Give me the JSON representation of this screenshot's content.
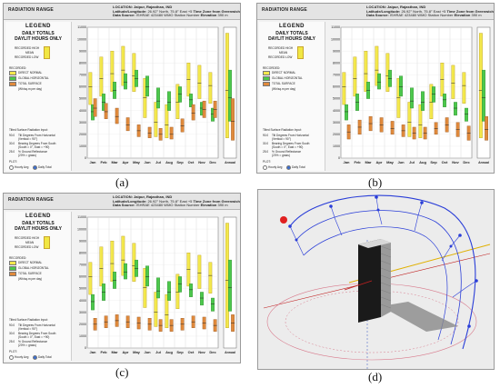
{
  "radiation_panel": {
    "app_title": "RADIATION RANGE",
    "location_label": "LOCATION:",
    "location_value": "Jaipur, Rajasthan, IND",
    "latlong_label": "Latitude/Longitude:",
    "latlong_value": "26.92° North, 75.8° East",
    "timezone_label": "Time Zone from Greenwich",
    "timezone_value": "+5",
    "source_label": "Data Source:",
    "source_value": "ISHRAE",
    "station_value": "423480 WMO Station Number",
    "elevation_label": "Elevation",
    "elevation_value": "390 m",
    "legend_title": "LEGEND",
    "legend_sub1": "DAILY TOTALS",
    "legend_sub2": "DAYLIT HOURS ONLY",
    "recorded_high": "RECORDED HIGH",
    "mean": "MEAN",
    "recorded_low": "RECORDED LOW",
    "recorded_header": "RECORDED:",
    "direct_normal": "DIRECT NORMAL",
    "global_horizontal": "GLOBAL HORIZONTAL",
    "total_surface": "TOTAL SURFACE",
    "units_note": "(Wh/sq.m per day)",
    "tilted_header": "Tilted Surface Radiation Input:",
    "tilt_value": "90.0",
    "tilt_text": "Tilt Degrees From Horizontal",
    "tilt_hint": "(Vertical = 90°)",
    "bearing_value": "30.0",
    "bearing_text": "Bearing Degrees From South",
    "bearing_hint": "(South = 0°, East = +90)",
    "reflectance_value": "25.0",
    "reflectance_text": "% Ground Reflectance",
    "reflectance_hint": "(20% = grass)",
    "plot_label": "PLOT:",
    "hourly_avg": "Hourly Avg",
    "daily_total": "Daily Total"
  },
  "captions": {
    "a": "(a)",
    "b": "(b)",
    "c": "(c)",
    "d": "(d)"
  },
  "colors": {
    "direct_normal": "#f3e84c",
    "global_horizontal": "#4cc84c",
    "total_surface": "#e08a3c"
  },
  "chart_data": [
    {
      "type": "bar",
      "title": "",
      "xlabel": "",
      "ylabel": "",
      "ylim": [
        0,
        11000
      ],
      "yticks": [
        "11000",
        "10000",
        "9000",
        "8000",
        "7000",
        "6000",
        "5000",
        "4000",
        "3000",
        "2000",
        "1000",
        "0"
      ],
      "categories": [
        "Jan",
        "Feb",
        "Mar",
        "Apr",
        "May",
        "Jun",
        "Jul",
        "Aug",
        "Sep",
        "Oct",
        "Nov",
        "Dec",
        "Annual"
      ],
      "series": [
        {
          "name": "DIRECT NORMAL",
          "low": [
            4500,
            5200,
            5600,
            6100,
            5600,
            3400,
            1800,
            1700,
            3300,
            5200,
            5000,
            4600,
            1700
          ],
          "mean": [
            6000,
            6700,
            7100,
            7400,
            6900,
            5100,
            3000,
            2800,
            4700,
            6600,
            6300,
            6100,
            5700
          ],
          "high": [
            7200,
            8500,
            9000,
            9400,
            8800,
            6700,
            4700,
            4500,
            6200,
            8000,
            7800,
            7200,
            10500
          ]
        },
        {
          "name": "GLOBAL HORIZONTAL",
          "low": [
            3200,
            4000,
            5000,
            5800,
            6000,
            5200,
            4200,
            4000,
            4700,
            4300,
            3600,
            3100,
            3100
          ],
          "mean": [
            3900,
            4700,
            5700,
            6400,
            6700,
            6000,
            4800,
            4700,
            5400,
            4900,
            4200,
            3700,
            5100
          ],
          "high": [
            4500,
            5400,
            6400,
            7100,
            7400,
            6900,
            5900,
            5600,
            6000,
            5400,
            4700,
            4200,
            7400
          ]
        },
        {
          "name": "TOTAL SURFACE",
          "low": [
            3500,
            3300,
            2900,
            2300,
            1800,
            1700,
            1500,
            1600,
            2200,
            3200,
            3400,
            3400,
            1500
          ],
          "mean": [
            4200,
            3900,
            3500,
            2800,
            2300,
            2100,
            2000,
            2000,
            2700,
            3800,
            4100,
            4100,
            3100
          ],
          "high": [
            5000,
            4600,
            4200,
            3400,
            2800,
            2600,
            2500,
            2600,
            3300,
            4500,
            4800,
            4800,
            5000
          ]
        }
      ]
    },
    {
      "type": "bar",
      "title": "",
      "xlabel": "",
      "ylabel": "",
      "ylim": [
        0,
        11000
      ],
      "yticks": [
        "11000",
        "10000",
        "9000",
        "8000",
        "7000",
        "6000",
        "5000",
        "4000",
        "3000",
        "2000",
        "1000",
        "0"
      ],
      "categories": [
        "Jan",
        "Feb",
        "Mar",
        "Apr",
        "May",
        "Jun",
        "Jul",
        "Aug",
        "Sep",
        "Oct",
        "Nov",
        "Dec",
        "Annual"
      ],
      "series": [
        {
          "name": "DIRECT NORMAL",
          "low": [
            4500,
            5200,
            5600,
            6100,
            5600,
            3400,
            1800,
            1700,
            3300,
            5200,
            5000,
            4600,
            1700
          ],
          "mean": [
            6000,
            6700,
            7100,
            7400,
            6900,
            5100,
            3000,
            2800,
            4700,
            6600,
            6300,
            6100,
            5700
          ],
          "high": [
            7200,
            8500,
            9000,
            9400,
            8800,
            6700,
            4700,
            4500,
            6200,
            8000,
            7800,
            7200,
            10500
          ]
        },
        {
          "name": "GLOBAL HORIZONTAL",
          "low": [
            3200,
            4000,
            5000,
            5800,
            6000,
            5200,
            4200,
            4000,
            4700,
            4300,
            3600,
            3100,
            3100
          ],
          "mean": [
            3900,
            4700,
            5700,
            6400,
            6700,
            6000,
            4800,
            4700,
            5400,
            4900,
            4200,
            3700,
            5100
          ],
          "high": [
            4500,
            5400,
            6400,
            7100,
            7400,
            6900,
            5900,
            5600,
            6000,
            5400,
            4700,
            4200,
            7400
          ]
        },
        {
          "name": "TOTAL SURFACE",
          "low": [
            1600,
            2000,
            2300,
            2200,
            2000,
            1800,
            1600,
            1600,
            2000,
            2200,
            1800,
            1500,
            1500
          ],
          "mean": [
            2200,
            2600,
            2900,
            2800,
            2500,
            2300,
            2100,
            2100,
            2500,
            2800,
            2400,
            2100,
            2400
          ],
          "high": [
            2800,
            3200,
            3500,
            3400,
            3100,
            2800,
            2600,
            2600,
            3000,
            3400,
            3000,
            2700,
            3500
          ]
        }
      ]
    },
    {
      "type": "bar",
      "title": "",
      "xlabel": "",
      "ylabel": "",
      "ylim": [
        0,
        11000
      ],
      "yticks": [
        "11000",
        "10000",
        "9000",
        "8000",
        "7000",
        "6000",
        "5000",
        "4000",
        "3000",
        "2000",
        "1000",
        "0"
      ],
      "categories": [
        "Jan",
        "Feb",
        "Mar",
        "Apr",
        "May",
        "Jun",
        "Jul",
        "Aug",
        "Sep",
        "Oct",
        "Nov",
        "Dec",
        "Annual"
      ],
      "series": [
        {
          "name": "DIRECT NORMAL",
          "low": [
            4500,
            5200,
            5600,
            6100,
            5600,
            3400,
            1800,
            1700,
            3300,
            5200,
            5000,
            4600,
            1700
          ],
          "mean": [
            6000,
            6700,
            7100,
            7400,
            6900,
            5100,
            3000,
            2800,
            4700,
            6600,
            6300,
            6100,
            5700
          ],
          "high": [
            7200,
            8500,
            9000,
            9400,
            8800,
            6700,
            4700,
            4500,
            6200,
            8000,
            7800,
            7200,
            10500
          ]
        },
        {
          "name": "GLOBAL HORIZONTAL",
          "low": [
            3200,
            4000,
            5000,
            5800,
            6000,
            5200,
            4200,
            4000,
            4700,
            4300,
            3600,
            3100,
            3100
          ],
          "mean": [
            3900,
            4700,
            5700,
            6400,
            6700,
            6000,
            4800,
            4700,
            5400,
            4900,
            4200,
            3700,
            5100
          ],
          "high": [
            4500,
            5400,
            6400,
            7100,
            7400,
            6900,
            5900,
            5600,
            6000,
            5400,
            4700,
            4200,
            7400
          ]
        },
        {
          "name": "TOTAL SURFACE",
          "low": [
            1500,
            1700,
            1800,
            1700,
            1600,
            1500,
            1400,
            1400,
            1500,
            1700,
            1600,
            1400,
            1400
          ],
          "mean": [
            2000,
            2200,
            2300,
            2200,
            2100,
            2000,
            1900,
            1900,
            2000,
            2200,
            2100,
            1900,
            2100
          ],
          "high": [
            2500,
            2700,
            2800,
            2700,
            2600,
            2500,
            2400,
            2400,
            2500,
            2700,
            2600,
            2400,
            2800
          ]
        }
      ]
    }
  ]
}
